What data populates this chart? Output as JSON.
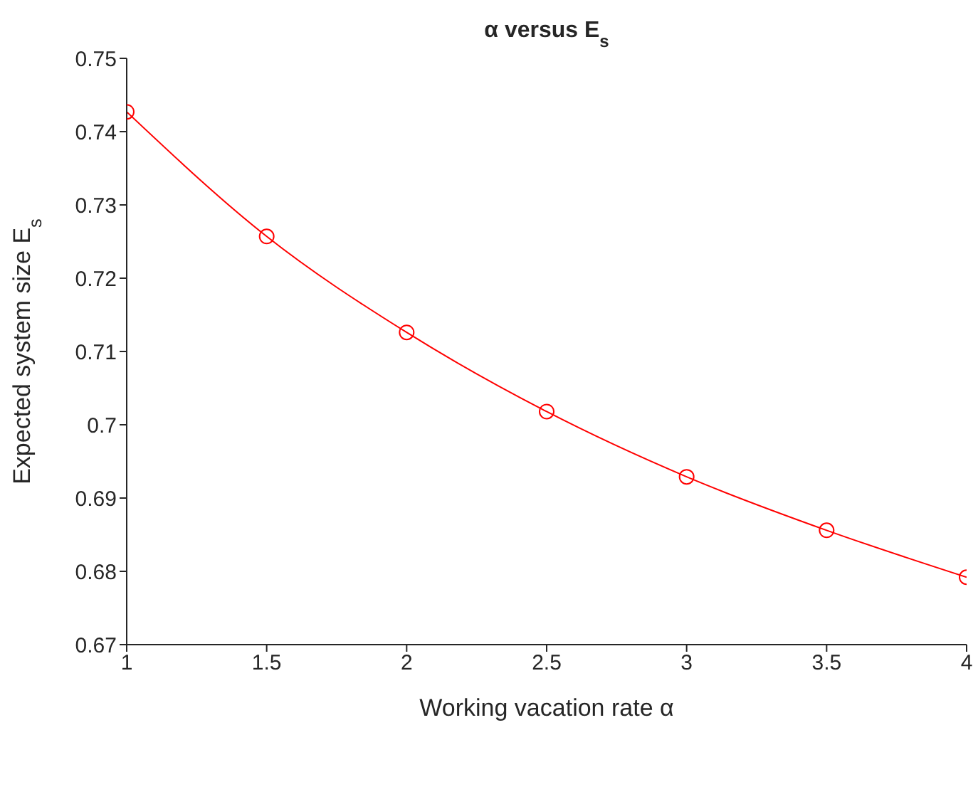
{
  "chart_data": {
    "type": "line",
    "title": "α versus E$_{s}$",
    "xlabel": "Working vacation rate α",
    "ylabel": "Expected system size E$_{s}$",
    "x": [
      1,
      1.5,
      2,
      2.5,
      3,
      3.5,
      4
    ],
    "series": [
      {
        "color": "#ff0000",
        "values": [
          0.7427,
          0.7257,
          0.7126,
          0.7018,
          0.6929,
          0.6856,
          0.6792
        ]
      }
    ],
    "xlim": [
      1,
      4
    ],
    "xticks": [
      1,
      1.5,
      2,
      2.5,
      3,
      3.5,
      4
    ],
    "ylim": [
      0.67,
      0.75
    ],
    "yticks": [
      0.67,
      0.68,
      0.69,
      0.7,
      0.71,
      0.72,
      0.73,
      0.74,
      0.75
    ],
    "marker": "circle",
    "line_style": "solid",
    "grid": false
  }
}
